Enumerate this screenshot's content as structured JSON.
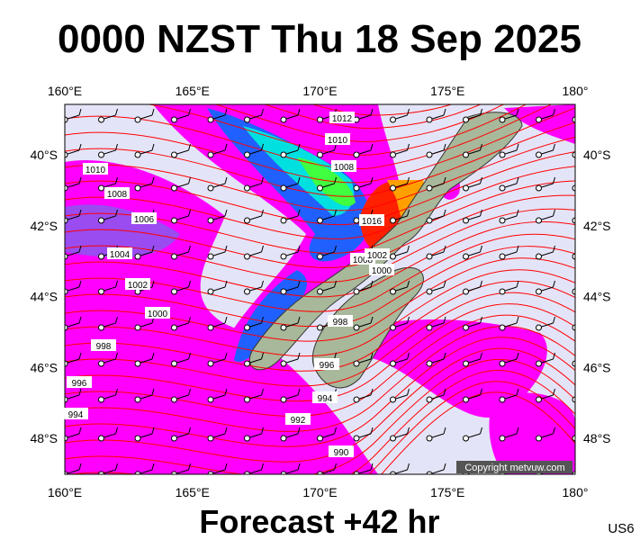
{
  "title": "0000 NZST Thu 18 Sep 2025",
  "subtitle": "Forecast +42 hr",
  "code": "US6",
  "copyright": "Copyright metvuw.com",
  "longitudes": [
    "160°E",
    "165°E",
    "170°E",
    "175°E",
    "180°"
  ],
  "latitudes": [
    "40°S",
    "42°S",
    "44°S",
    "46°S",
    "48°S"
  ],
  "isobar_labels": [
    "1012",
    "1010",
    "1008",
    "1010",
    "1008",
    "1006",
    "1004",
    "1002",
    "1000",
    "998",
    "996",
    "994",
    "992",
    "990",
    "998",
    "996",
    "994",
    "1016",
    "1008",
    "1002",
    "1000"
  ]
}
